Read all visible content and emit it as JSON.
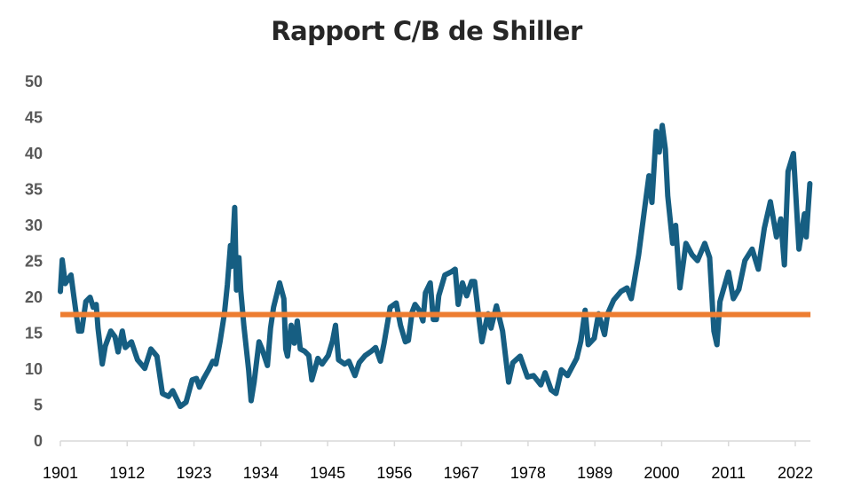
{
  "chart_data": {
    "type": "line",
    "title": "Rapport C/B de Shiller",
    "xlabel": "",
    "ylabel": "",
    "xlim": [
      1901,
      2024.5
    ],
    "ylim": [
      0,
      50
    ],
    "yticks": [
      0,
      5,
      10,
      15,
      20,
      25,
      30,
      35,
      40,
      45,
      50
    ],
    "xticks": [
      1901,
      1912,
      1923,
      1934,
      1945,
      1956,
      1967,
      1978,
      1989,
      2000,
      2011,
      2022
    ],
    "grid": false,
    "colors": {
      "series": "#165e82",
      "average": "#ed7d31"
    },
    "average_line": 17.6,
    "series": [
      {
        "x": [
          1901.0,
          1901.3,
          1901.8,
          1902.75,
          1903.2,
          1904.0,
          1904.5,
          1905.2,
          1905.9,
          1906.4,
          1906.9,
          1907.2,
          1907.9,
          1908.4,
          1909.3,
          1910.0,
          1910.5,
          1911.2,
          1911.7,
          1912.7,
          1913.7,
          1914.9,
          1915.9,
          1916.9,
          1917.8,
          1918.8,
          1919.5,
          1920.75,
          1921.7,
          1922.7,
          1923.4,
          1923.9,
          1924.6,
          1925.4,
          1926.1,
          1926.6,
          1927.3,
          1928.0,
          1928.5,
          1929.0,
          1929.2,
          1929.7,
          1930.0,
          1930.4,
          1930.7,
          1931.2,
          1932.0,
          1932.4,
          1932.9,
          1933.7,
          1934.2,
          1935.1,
          1935.6,
          1936.1,
          1937.1,
          1937.8,
          1938.1,
          1938.4,
          1939.0,
          1939.5,
          1940.0,
          1940.5,
          1941.2,
          1941.9,
          1942.4,
          1943.4,
          1944.1,
          1945.1,
          1945.8,
          1946.3,
          1946.8,
          1947.8,
          1948.5,
          1949.5,
          1950.2,
          1951.2,
          1952.2,
          1952.9,
          1953.7,
          1954.3,
          1955.3,
          1956.3,
          1957.0,
          1957.8,
          1958.3,
          1958.9,
          1959.4,
          1960.1,
          1960.7,
          1961.1,
          1961.9,
          1962.4,
          1962.9,
          1963.3,
          1964.3,
          1965.3,
          1966.0,
          1966.5,
          1967.2,
          1967.9,
          1968.7,
          1969.2,
          1969.7,
          1970.4,
          1971.4,
          1971.9,
          1972.8,
          1973.8,
          1974.8,
          1975.5,
          1976.7,
          1977.9,
          1978.9,
          1980.1,
          1980.8,
          1981.8,
          1982.6,
          1983.5,
          1984.5,
          1986.0,
          1986.7,
          1987.4,
          1987.9,
          1988.9,
          1989.6,
          1990.6,
          1991.1,
          1992.1,
          1993.3,
          1994.3,
          1995.0,
          1996.2,
          1997.2,
          1997.9,
          1998.4,
          1999.1,
          1999.6,
          2000.1,
          2000.6,
          2001.0,
          2001.8,
          2002.3,
          2003.0,
          2004.0,
          2005.0,
          2005.9,
          2007.1,
          2007.9,
          2008.6,
          2009.1,
          2009.6,
          2011.0,
          2011.8,
          2012.7,
          2013.7,
          2014.9,
          2015.9,
          2016.9,
          2017.9,
          2018.9,
          2019.6,
          2020.2,
          2020.8,
          2021.7,
          2022.6,
          2023.5,
          2023.8,
          2024.4
        ],
        "y": [
          20.8,
          25.2,
          21.9,
          23.1,
          20.2,
          15.3,
          15.3,
          19.4,
          20.0,
          18.6,
          19.0,
          15.7,
          10.7,
          13.2,
          15.3,
          14.5,
          12.4,
          15.3,
          13.0,
          13.8,
          11.3,
          10.1,
          12.8,
          11.8,
          6.6,
          6.2,
          7.0,
          4.8,
          5.4,
          8.5,
          8.7,
          7.5,
          8.7,
          9.9,
          11.1,
          10.7,
          13.9,
          17.7,
          21.8,
          27.2,
          24.3,
          32.5,
          21.0,
          25.5,
          21.0,
          16.1,
          9.9,
          5.6,
          8.2,
          13.8,
          12.8,
          10.5,
          15.7,
          18.6,
          22.0,
          19.8,
          12.8,
          11.8,
          16.1,
          13.6,
          16.7,
          12.8,
          12.5,
          11.9,
          8.5,
          11.5,
          10.7,
          11.9,
          13.9,
          16.1,
          11.3,
          10.7,
          11.1,
          9.1,
          10.9,
          11.9,
          12.5,
          13.0,
          11.1,
          13.6,
          18.6,
          19.2,
          16.1,
          13.8,
          14.0,
          17.9,
          19.0,
          18.2,
          16.7,
          20.6,
          22.0,
          16.9,
          16.9,
          20.2,
          23.1,
          23.5,
          23.9,
          19.0,
          22.0,
          20.2,
          22.2,
          22.2,
          18.6,
          13.8,
          17.7,
          15.7,
          18.8,
          15.3,
          8.2,
          10.9,
          11.8,
          8.9,
          9.1,
          7.8,
          9.5,
          7.1,
          6.6,
          9.9,
          9.1,
          11.5,
          13.9,
          18.2,
          13.4,
          14.3,
          17.7,
          14.8,
          17.7,
          19.6,
          20.8,
          21.3,
          19.8,
          25.9,
          32.4,
          36.9,
          33.2,
          43.1,
          40.2,
          43.9,
          40.6,
          34.1,
          27.5,
          30.0,
          21.3,
          27.5,
          25.9,
          25.1,
          27.5,
          25.5,
          15.3,
          13.4,
          19.4,
          23.5,
          19.8,
          21.1,
          25.1,
          26.7,
          23.9,
          29.6,
          33.3,
          28.4,
          30.9,
          24.5,
          37.5,
          40.0,
          26.7,
          31.6,
          28.4,
          35.8
        ]
      }
    ]
  }
}
